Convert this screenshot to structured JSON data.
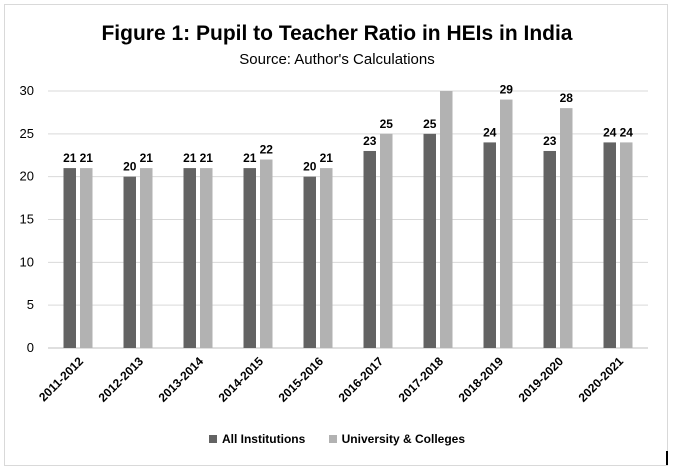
{
  "chart_data": {
    "type": "bar",
    "title": "Figure 1: Pupil to Teacher Ratio in HEIs in India",
    "subtitle": "Source: Author's Calculations",
    "categories": [
      "2011-2012",
      "2012-2013",
      "2013-2014",
      "2014-2015",
      "2015-2016",
      "2016-2017",
      "2017-2018",
      "2018-2019",
      "2019-2020",
      "2020-2021"
    ],
    "series": [
      {
        "name": "All Institutions",
        "values": [
          21,
          20,
          21,
          21,
          20,
          23,
          25,
          24,
          23,
          24
        ],
        "color": "#636363",
        "labels": [
          "21",
          "20",
          "21",
          "21",
          "20",
          "23",
          "25",
          "24",
          "23",
          "24"
        ]
      },
      {
        "name": "University & Colleges",
        "values": [
          21,
          21,
          21,
          22,
          21,
          25,
          30,
          29,
          28,
          24
        ],
        "color": "#b2b2b2",
        "labels": [
          "21",
          "21",
          "21",
          "22",
          "21",
          "25",
          "",
          "29",
          "28",
          "24"
        ]
      }
    ],
    "yticks": [
      "0",
      "5",
      "10",
      "15",
      "20",
      "25",
      "30"
    ],
    "ylim": [
      0,
      30
    ],
    "grid": true,
    "legend": "bottom"
  }
}
